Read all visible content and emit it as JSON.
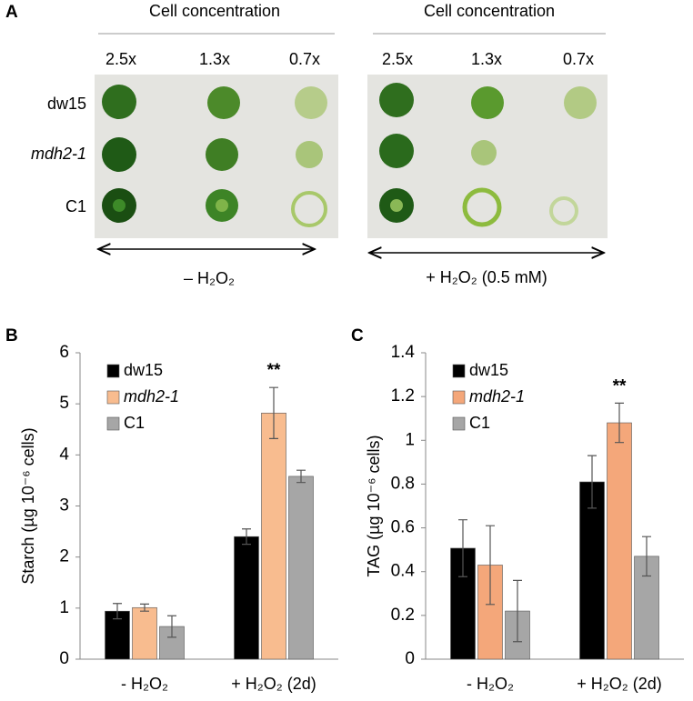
{
  "panel_a": {
    "label": "A",
    "headers": [
      "Cell concentration",
      "Cell concentration"
    ],
    "concentrations": [
      "2.5x",
      "1.3x",
      "0.7x"
    ],
    "rows": [
      {
        "label": "dw15"
      },
      {
        "label": "mdh2-1",
        "italic": true
      },
      {
        "label": "C1"
      }
    ],
    "conditions": [
      "– H₂O₂",
      "+ H₂O₂ (0.5 mM)"
    ]
  },
  "chart_data": [
    {
      "type": "bar",
      "panel_label": "B",
      "y_label": "Starch (µg 10⁻⁶ cells)",
      "categories": [
        "- H₂O₂",
        "+ H₂O₂ (2d)"
      ],
      "series": [
        {
          "name": "dw15",
          "color": "#000000",
          "values": [
            0.94,
            2.4
          ],
          "errors": [
            0.15,
            0.15
          ]
        },
        {
          "name": "mdh2-1",
          "italic": true,
          "color": "#f8bc8f",
          "values": [
            1.01,
            4.82
          ],
          "errors": [
            0.07,
            0.5
          ]
        },
        {
          "name": "C1",
          "color": "#a6a6a6",
          "values": [
            0.64,
            3.58
          ],
          "errors": [
            0.21,
            0.12
          ]
        }
      ],
      "ylim": [
        0,
        6
      ],
      "yticks": [
        0,
        1,
        2,
        3,
        4,
        5,
        6
      ],
      "annotations": [
        {
          "text": "**"
        }
      ]
    },
    {
      "type": "bar",
      "panel_label": "C",
      "y_label": "TAG (µg 10⁻⁶ cells)",
      "categories": [
        "- H₂O₂",
        "+ H₂O₂ (2d)"
      ],
      "series": [
        {
          "name": "dw15",
          "color": "#000000",
          "values": [
            0.507,
            0.81
          ],
          "errors": [
            0.13,
            0.12
          ]
        },
        {
          "name": "mdh2-1",
          "italic": true,
          "color": "#f4a77a",
          "values": [
            0.43,
            1.08
          ],
          "errors": [
            0.18,
            0.09
          ]
        },
        {
          "name": "C1",
          "color": "#a6a6a6",
          "values": [
            0.22,
            0.47
          ],
          "errors": [
            0.14,
            0.09
          ]
        }
      ],
      "ylim": [
        0,
        1.4
      ],
      "yticks": [
        0,
        0.2,
        0.4,
        0.6,
        0.8,
        1,
        1.2,
        1.4
      ],
      "annotations": [
        {
          "text": "**"
        }
      ]
    }
  ]
}
